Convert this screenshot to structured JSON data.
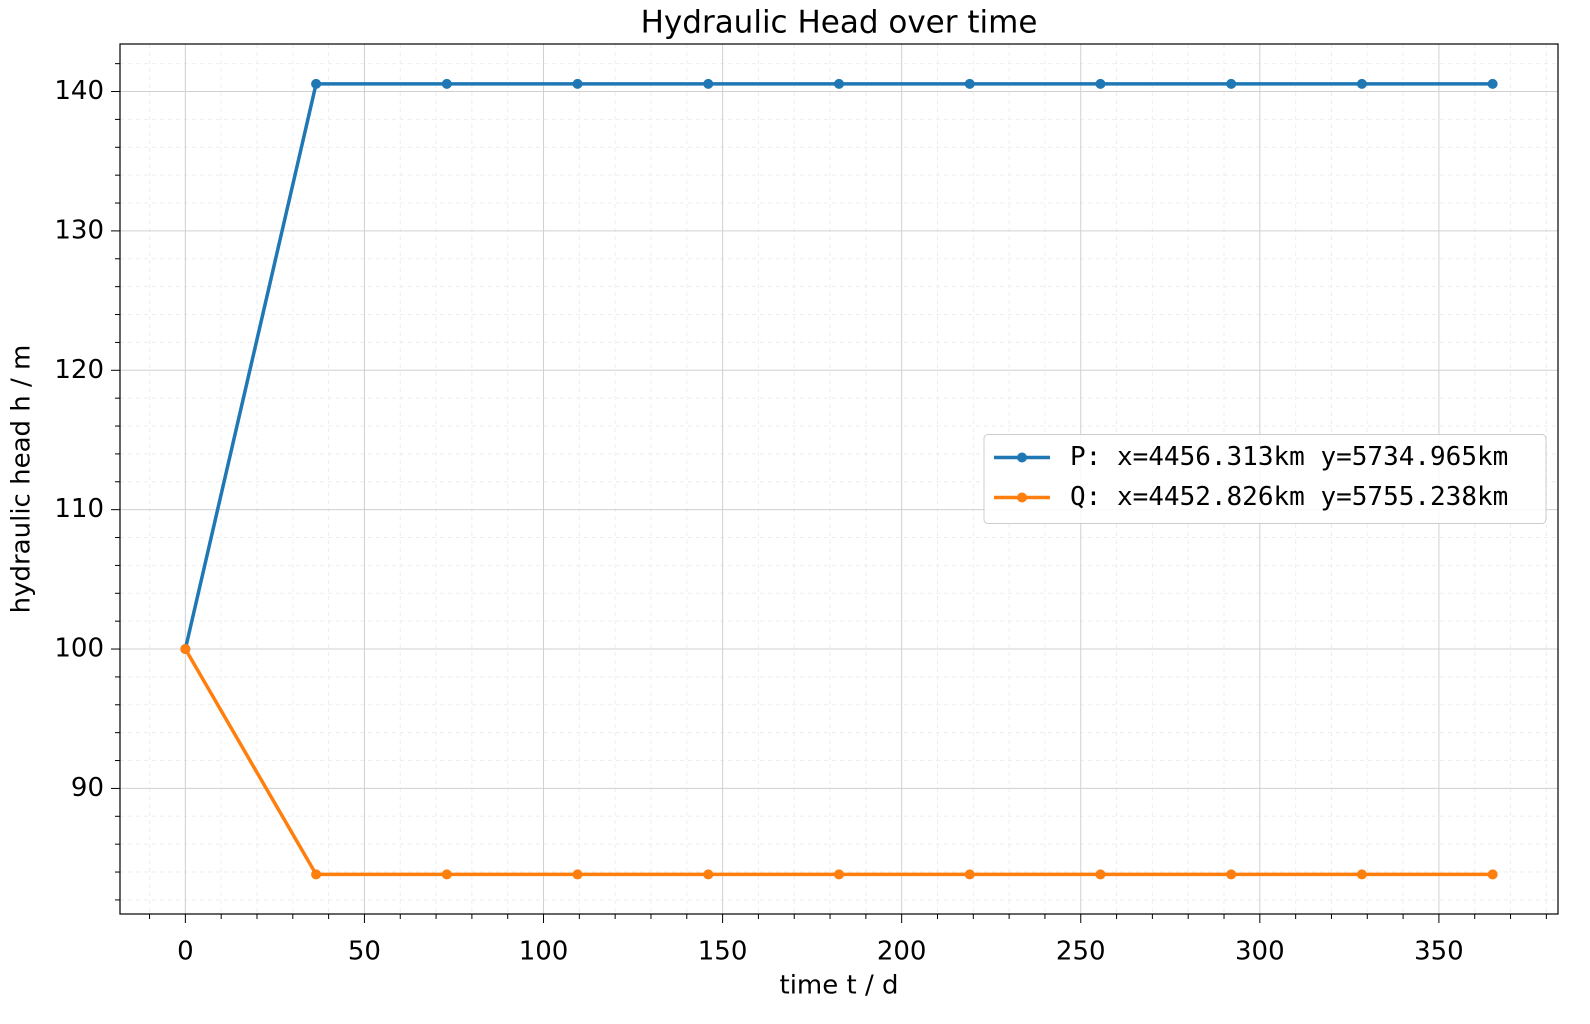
{
  "chart_data": {
    "type": "line",
    "title": "Hydraulic Head over time",
    "xlabel": "time t / d",
    "ylabel": "hydraulic head h / m",
    "x": [
      0,
      36.5,
      73,
      109.5,
      146,
      182.5,
      219,
      255.5,
      292,
      328.5,
      365
    ],
    "series": [
      {
        "name": "P: x=4456.313km y=5734.965km",
        "color": "#1f77b4",
        "values": [
          100,
          140.55,
          140.55,
          140.55,
          140.55,
          140.55,
          140.55,
          140.55,
          140.55,
          140.55,
          140.55
        ]
      },
      {
        "name": "Q: x=4452.826km y=5755.238km",
        "color": "#ff7f0e",
        "values": [
          100,
          83.83,
          83.83,
          83.83,
          83.83,
          83.83,
          83.83,
          83.83,
          83.83,
          83.83,
          83.83
        ]
      }
    ],
    "xlim": [
      -18.25,
      383.25
    ],
    "ylim": [
      80.99,
      143.41
    ],
    "xticks": [
      0,
      50,
      100,
      150,
      200,
      250,
      300,
      350
    ],
    "yticks": [
      90,
      100,
      110,
      120,
      130,
      140
    ],
    "xminorticks": [
      -10,
      10,
      20,
      30,
      40,
      60,
      70,
      80,
      90,
      110,
      120,
      130,
      140,
      160,
      170,
      180,
      190,
      210,
      220,
      230,
      240,
      260,
      270,
      280,
      290,
      310,
      320,
      330,
      340,
      360,
      370,
      380
    ],
    "yminorticks": [
      82,
      84,
      86,
      88,
      92,
      94,
      96,
      98,
      102,
      104,
      106,
      108,
      112,
      114,
      116,
      118,
      122,
      124,
      126,
      128,
      132,
      134,
      136,
      138,
      142
    ],
    "grid": true,
    "minor_grid": true,
    "legend": "center right"
  }
}
